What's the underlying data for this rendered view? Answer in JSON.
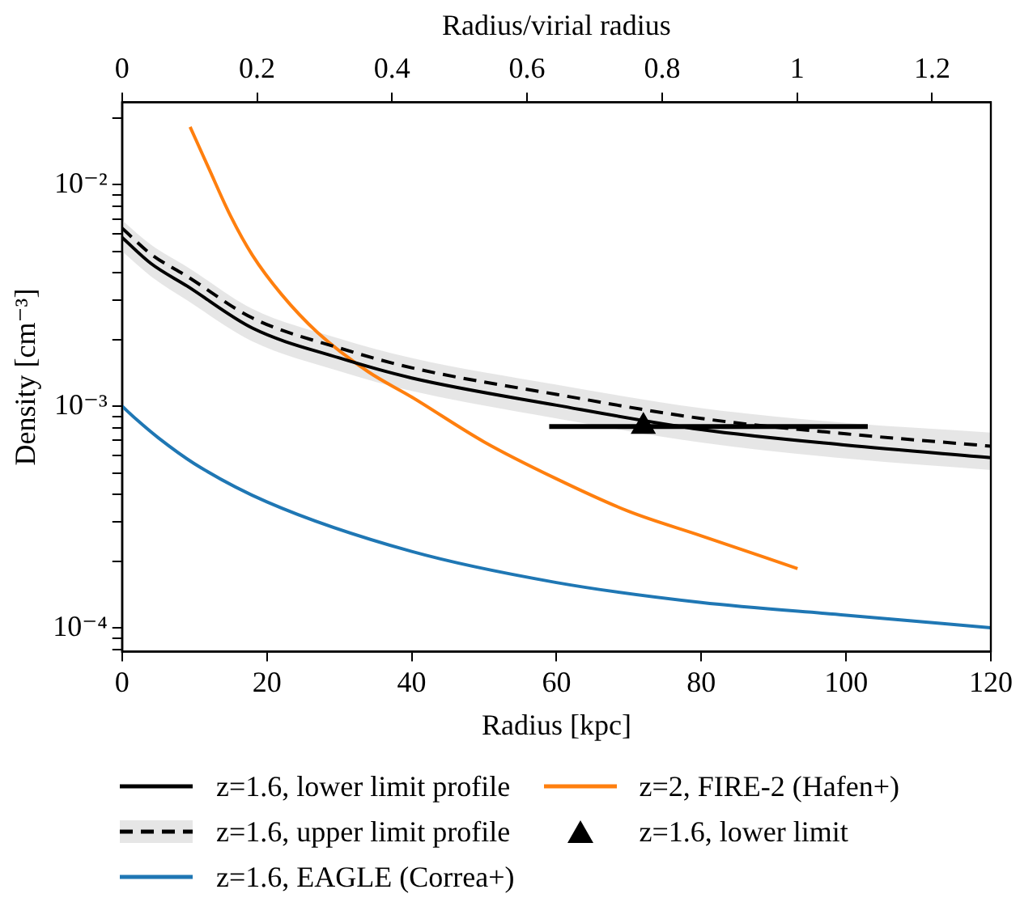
{
  "chart_data": {
    "type": "line",
    "xlabel": "Radius [kpc]",
    "ylabel": "Density [cm⁻³]",
    "x2label": "Radius/virial radius",
    "xlim": [
      0,
      120
    ],
    "xticks": [
      0,
      20,
      40,
      60,
      80,
      100,
      120
    ],
    "x2lim": [
      0,
      1.287
    ],
    "x2ticks": [
      0,
      0.2,
      0.4,
      0.6,
      0.8,
      1,
      1.2
    ],
    "ylim": [
      7.8e-05,
      0.0235
    ],
    "log": "y",
    "yticks": [
      {
        "value": 8e-05,
        "label": null
      },
      {
        "value": 9e-05,
        "label": null
      },
      {
        "value": 0.0001,
        "label": "10⁻⁴"
      },
      {
        "value": 0.0002,
        "label": null
      },
      {
        "value": 0.0003,
        "label": null
      },
      {
        "value": 0.0004,
        "label": null
      },
      {
        "value": 0.0005,
        "label": null
      },
      {
        "value": 0.0006,
        "label": null
      },
      {
        "value": 0.0007,
        "label": null
      },
      {
        "value": 0.0008,
        "label": null
      },
      {
        "value": 0.0009,
        "label": null
      },
      {
        "value": 0.001,
        "label": "10⁻³"
      },
      {
        "value": 0.002,
        "label": null
      },
      {
        "value": 0.003,
        "label": null
      },
      {
        "value": 0.004,
        "label": null
      },
      {
        "value": 0.005,
        "label": null
      },
      {
        "value": 0.006,
        "label": null
      },
      {
        "value": 0.007,
        "label": null
      },
      {
        "value": 0.008,
        "label": null
      },
      {
        "value": 0.009,
        "label": null
      },
      {
        "value": 0.01,
        "label": "10⁻²"
      },
      {
        "value": 0.02,
        "label": null
      }
    ],
    "grid": false,
    "legend": "bottom",
    "series": [
      {
        "name": "z=1.6, lower limit profile",
        "color": "#000000",
        "line_style": "solid",
        "x": [
          0,
          4,
          9,
          18,
          30,
          40,
          60,
          80,
          100,
          120
        ],
        "values": [
          0.00577,
          0.0044,
          0.00348,
          0.00225,
          0.00165,
          0.00134,
          0.00101,
          0.000784,
          0.000667,
          0.000586
        ]
      },
      {
        "name": "z=1.6, upper limit profile",
        "color": "#000000",
        "line_style": "dashed",
        "x": [
          0,
          4,
          9,
          18,
          30,
          40,
          60,
          80,
          100,
          120
        ],
        "values": [
          0.00635,
          0.00485,
          0.00385,
          0.0025,
          0.00183,
          0.00149,
          0.00113,
          0.00088,
          0.00075,
          0.00066
        ],
        "lower": [
          0.005,
          0.00385,
          0.003,
          0.00196,
          0.00144,
          0.00117,
          0.00088,
          0.000685,
          0.00058,
          0.000515
        ],
        "upper": [
          0.0069,
          0.00535,
          0.00425,
          0.00275,
          0.00202,
          0.00165,
          0.00125,
          0.00098,
          0.00084,
          0.00076
        ]
      },
      {
        "name": "z=1.6, EAGLE (Correa+)",
        "color": "#1f77b4",
        "line_style": "solid",
        "x": [
          0,
          2,
          5,
          10,
          20,
          40,
          60,
          80,
          100,
          120
        ],
        "values": [
          0.001,
          0.00087,
          0.00072,
          0.00055,
          0.00037,
          0.000221,
          0.00016,
          0.00013,
          0.000114,
          0.0001
        ]
      },
      {
        "name": "z=2, FIRE-2 (Hafen+)",
        "color": "#ff7f0e",
        "line_style": "solid",
        "x": [
          9.4,
          12,
          15,
          18,
          22,
          27,
          34,
          40,
          50,
          60,
          70,
          80,
          93.3
        ],
        "values": [
          0.0182,
          0.0118,
          0.0072,
          0.0048,
          0.0032,
          0.00215,
          0.00143,
          0.0011,
          0.00069,
          0.00047,
          0.000335,
          0.00026,
          0.000185
        ]
      },
      {
        "name": "z=1.6, lower limit",
        "type": "scatter",
        "color": "#000000",
        "marker": "triangle",
        "x": [
          72
        ],
        "values": [
          0.00081
        ],
        "xerrors": [
          [
            59,
            103
          ]
        ]
      }
    ]
  }
}
